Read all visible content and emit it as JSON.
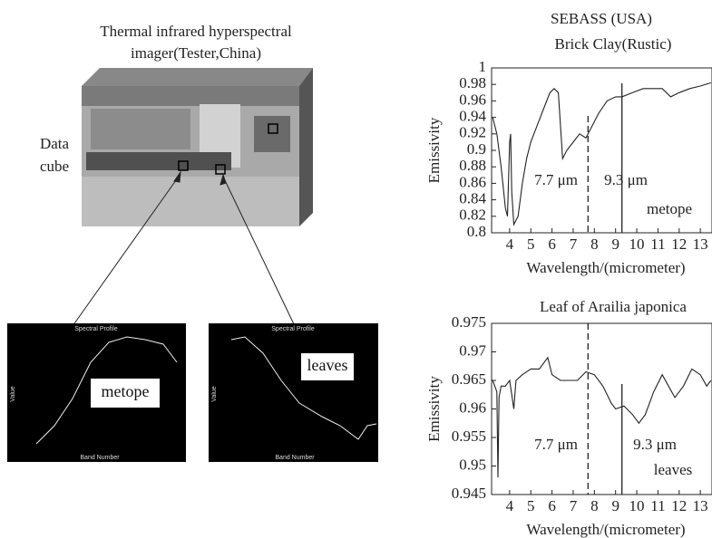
{
  "figure": {
    "imager_title_line1": "Thermal infrared  hyperspectral",
    "imager_title_line2": "imager(Tester,China)",
    "cube_label_line1": "Data",
    "cube_label_line2": "cube",
    "profile_left": {
      "title": "Spectral Profile",
      "xlabel": "Band Number",
      "ylabel": "Value",
      "label": "metope"
    },
    "profile_right": {
      "title": "Spectral Profile",
      "xlabel": "Band Number",
      "ylabel": "Value",
      "label": "leaves"
    },
    "sensor_title": "SEBASS (USA)"
  },
  "chart_data": [
    {
      "type": "line",
      "title": "Brick Clay(Rustic)",
      "xlabel": "Wavelength/(micrometer)",
      "ylabel": "Emissivity",
      "xlim": [
        3.15,
        13.55
      ],
      "ylim": [
        0.8,
        1
      ],
      "xticks": [
        4,
        5,
        6,
        7,
        8,
        9,
        10,
        11,
        12,
        13
      ],
      "yticks": [
        0.8,
        0.82,
        0.84,
        0.86,
        0.88,
        0.9,
        0.92,
        0.94,
        0.96,
        0.98,
        1
      ],
      "x": [
        3.2,
        3.4,
        3.6,
        3.8,
        3.9,
        4.0,
        4.05,
        4.1,
        4.2,
        4.4,
        4.6,
        4.8,
        5.0,
        5.3,
        5.6,
        5.9,
        6.1,
        6.3,
        6.5,
        6.7,
        7.0,
        7.3,
        7.6,
        7.9,
        8.2,
        8.6,
        9.0,
        9.3,
        9.8,
        10.3,
        10.8,
        11.2,
        11.6,
        12.0,
        12.5,
        13.0,
        13.5
      ],
      "series": [
        {
          "color": "#222222",
          "values": [
            0.94,
            0.92,
            0.88,
            0.83,
            0.82,
            0.91,
            0.92,
            0.85,
            0.81,
            0.82,
            0.86,
            0.89,
            0.91,
            0.93,
            0.95,
            0.97,
            0.975,
            0.97,
            0.89,
            0.9,
            0.91,
            0.92,
            0.915,
            0.93,
            0.945,
            0.96,
            0.965,
            0.965,
            0.97,
            0.975,
            0.975,
            0.975,
            0.965,
            0.97,
            0.975,
            0.978,
            0.982
          ]
        }
      ],
      "vlines": [
        {
          "value": 7.7,
          "label": "7.7 μm",
          "style": "dashed"
        },
        {
          "value": 9.3,
          "label": "9.3 μm",
          "style": "solid"
        }
      ],
      "annotation": "metope"
    },
    {
      "type": "line",
      "title": "Leaf of Arailia japonica",
      "xlabel": "Wavelength/(micrometer)",
      "ylabel": "Emissivity",
      "xlim": [
        3.15,
        13.55
      ],
      "ylim": [
        0.945,
        0.975
      ],
      "xticks": [
        4,
        5,
        6,
        7,
        8,
        9,
        10,
        11,
        12,
        13
      ],
      "yticks": [
        0.945,
        0.95,
        0.955,
        0.96,
        0.965,
        0.97,
        0.975
      ],
      "x": [
        3.2,
        3.4,
        3.45,
        3.5,
        3.6,
        3.8,
        4.0,
        4.2,
        4.3,
        4.6,
        5.0,
        5.4,
        5.8,
        6.0,
        6.4,
        6.8,
        7.2,
        7.6,
        8.0,
        8.4,
        8.8,
        9.0,
        9.4,
        9.8,
        10.1,
        10.4,
        10.8,
        11.2,
        11.5,
        11.8,
        12.2,
        12.6,
        13.0,
        13.3,
        13.5
      ],
      "series": [
        {
          "color": "#222222",
          "values": [
            0.965,
            0.963,
            0.948,
            0.962,
            0.964,
            0.964,
            0.965,
            0.96,
            0.965,
            0.966,
            0.967,
            0.967,
            0.969,
            0.966,
            0.965,
            0.965,
            0.965,
            0.9665,
            0.966,
            0.964,
            0.961,
            0.96,
            0.9605,
            0.959,
            0.9575,
            0.959,
            0.963,
            0.966,
            0.964,
            0.962,
            0.964,
            0.967,
            0.966,
            0.964,
            0.965
          ]
        }
      ],
      "vlines": [
        {
          "value": 7.7,
          "label": "7.7 μm",
          "style": "dashed"
        },
        {
          "value": 9.3,
          "label": "9.3 μm",
          "style": "solid"
        }
      ],
      "annotation": "leaves"
    }
  ]
}
